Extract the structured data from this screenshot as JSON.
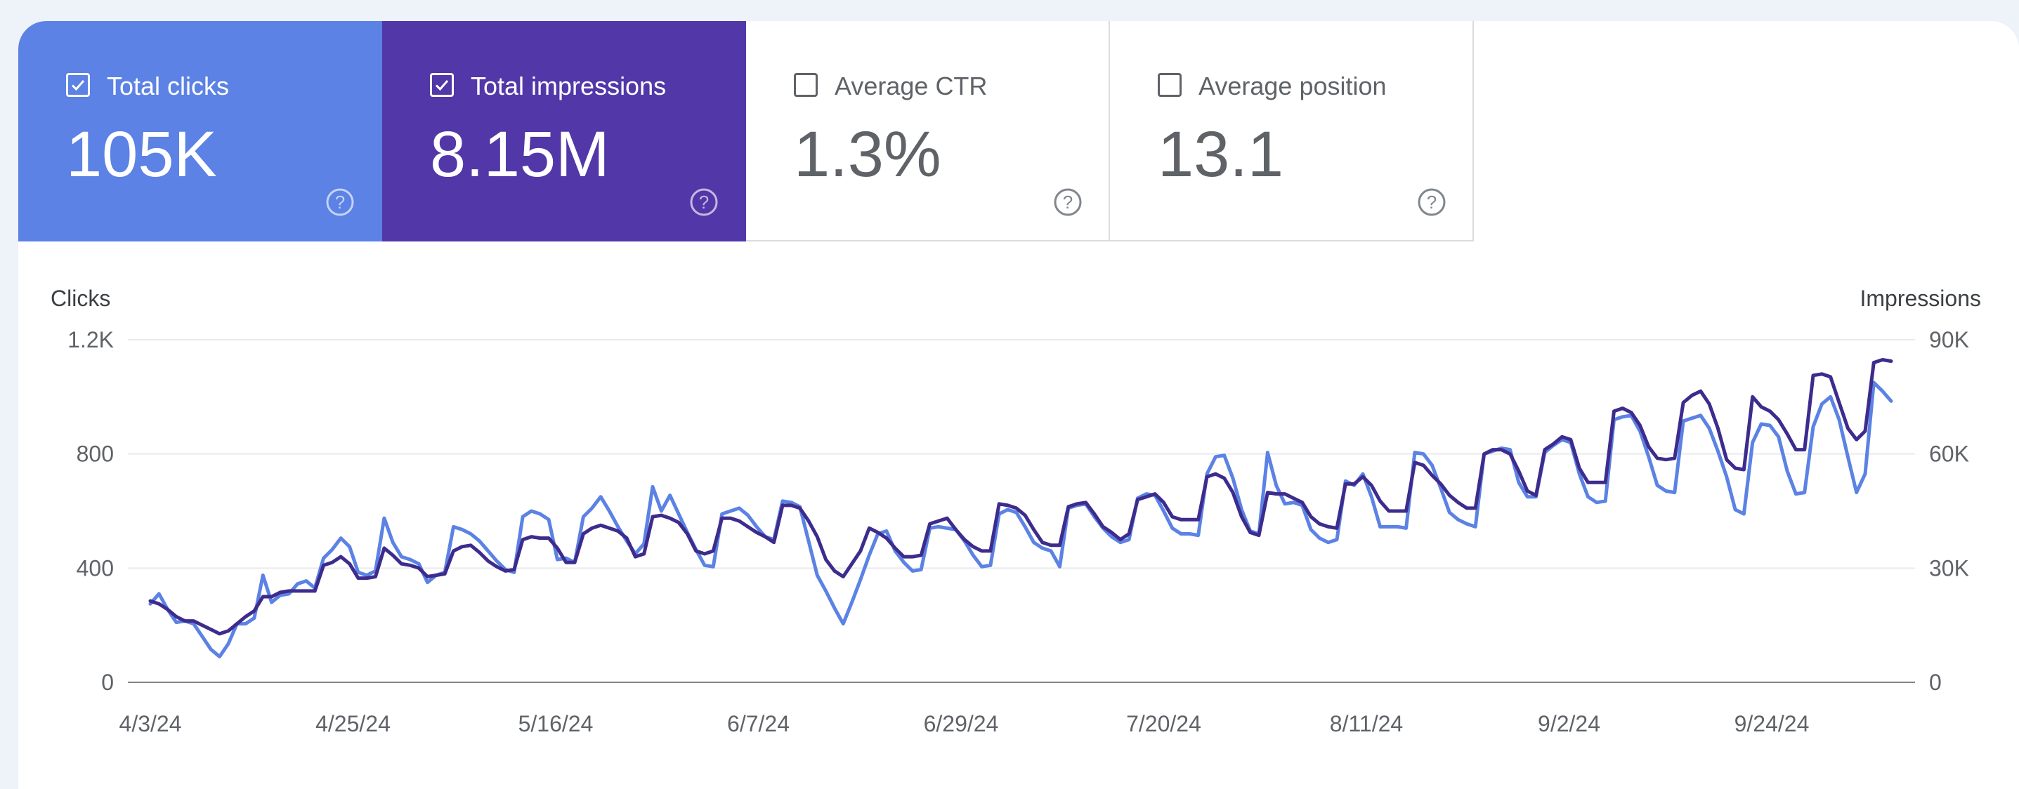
{
  "cards": [
    {
      "label": "Total clicks",
      "value": "105K",
      "checked": true,
      "bg": "#5b82e4"
    },
    {
      "label": "Total impressions",
      "value": "8.15M",
      "checked": true,
      "bg": "#5237a8"
    },
    {
      "label": "Average CTR",
      "value": "1.3%",
      "checked": false,
      "bg": "#ffffff"
    },
    {
      "label": "Average position",
      "value": "13.1",
      "checked": false,
      "bg": "#ffffff"
    }
  ],
  "chart_data": {
    "type": "line",
    "x_tick_labels": [
      "4/3/24",
      "4/25/24",
      "5/16/24",
      "6/7/24",
      "6/29/24",
      "7/20/24",
      "8/11/24",
      "9/2/24",
      "9/24/24"
    ],
    "left_axis": {
      "title": "Clicks",
      "ylim": [
        0,
        1200
      ],
      "tick_labels": [
        "0",
        "400",
        "800",
        "1.2K"
      ]
    },
    "right_axis": {
      "title": "Impressions",
      "ylim": [
        0,
        90000
      ],
      "tick_labels": [
        "0",
        "30K",
        "60K",
        "90K"
      ]
    },
    "grid": true,
    "legend": "none",
    "series": [
      {
        "axis": "left",
        "color": "#5b82e4",
        "values": [
          275,
          310,
          255,
          210,
          215,
          205,
          160,
          115,
          90,
          135,
          205,
          205,
          225,
          375,
          280,
          305,
          310,
          345,
          355,
          330,
          435,
          465,
          505,
          475,
          385,
          375,
          390,
          575,
          490,
          440,
          430,
          415,
          350,
          375,
          385,
          545,
          535,
          520,
          495,
          460,
          425,
          395,
          385,
          580,
          600,
          590,
          570,
          430,
          435,
          420,
          580,
          610,
          650,
          600,
          545,
          495,
          450,
          485,
          685,
          600,
          655,
          590,
          525,
          465,
          410,
          405,
          590,
          600,
          610,
          585,
          545,
          510,
          500,
          635,
          630,
          615,
          495,
          375,
          320,
          260,
          205,
          280,
          360,
          445,
          520,
          530,
          460,
          420,
          390,
          395,
          540,
          545,
          540,
          535,
          495,
          445,
          405,
          410,
          590,
          605,
          595,
          545,
          490,
          470,
          460,
          405,
          610,
          620,
          625,
          580,
          540,
          510,
          490,
          500,
          645,
          660,
          655,
          600,
          540,
          520,
          520,
          515,
          730,
          790,
          795,
          715,
          605,
          530,
          520,
          805,
          690,
          625,
          630,
          620,
          535,
          505,
          490,
          500,
          705,
          690,
          730,
          650,
          545,
          545,
          545,
          540,
          805,
          800,
          760,
          680,
          595,
          570,
          555,
          545,
          800,
          810,
          820,
          815,
          700,
          650,
          650,
          805,
          830,
          850,
          840,
          730,
          650,
          630,
          635,
          920,
          930,
          935,
          880,
          790,
          690,
          670,
          665,
          915,
          925,
          935,
          890,
          810,
          720,
          605,
          590,
          840,
          905,
          900,
          860,
          740,
          660,
          665,
          895,
          975,
          1000,
          920,
          790,
          665,
          730,
          1050,
          1020,
          985
        ]
      },
      {
        "axis": "left",
        "color": "#3d2c8d",
        "values": [
          285,
          275,
          255,
          230,
          215,
          215,
          200,
          185,
          170,
          180,
          205,
          230,
          250,
          300,
          300,
          315,
          320,
          320,
          320,
          320,
          410,
          420,
          440,
          415,
          365,
          365,
          370,
          470,
          445,
          415,
          410,
          400,
          370,
          375,
          380,
          460,
          475,
          480,
          455,
          425,
          405,
          390,
          395,
          500,
          510,
          505,
          505,
          470,
          420,
          420,
          520,
          540,
          550,
          540,
          530,
          505,
          440,
          450,
          580,
          585,
          575,
          560,
          520,
          460,
          450,
          460,
          575,
          575,
          565,
          545,
          525,
          510,
          490,
          620,
          620,
          610,
          565,
          510,
          430,
          390,
          370,
          415,
          460,
          540,
          525,
          505,
          470,
          440,
          440,
          445,
          555,
          565,
          575,
          535,
          500,
          475,
          460,
          460,
          625,
          620,
          610,
          585,
          535,
          490,
          480,
          480,
          615,
          625,
          630,
          590,
          545,
          525,
          500,
          520,
          640,
          650,
          660,
          630,
          580,
          570,
          570,
          570,
          720,
          730,
          715,
          665,
          580,
          525,
          515,
          665,
          660,
          660,
          645,
          630,
          580,
          555,
          545,
          540,
          695,
          695,
          720,
          690,
          635,
          600,
          600,
          600,
          770,
          760,
          725,
          695,
          655,
          630,
          610,
          610,
          800,
          815,
          815,
          800,
          740,
          670,
          655,
          815,
          835,
          860,
          850,
          750,
          700,
          700,
          700,
          950,
          960,
          945,
          900,
          825,
          785,
          780,
          785,
          980,
          1005,
          1020,
          975,
          890,
          780,
          750,
          745,
          1000,
          965,
          950,
          920,
          870,
          815,
          815,
          1075,
          1080,
          1070,
          980,
          890,
          850,
          880,
          1120,
          1130,
          1125
        ]
      }
    ]
  }
}
